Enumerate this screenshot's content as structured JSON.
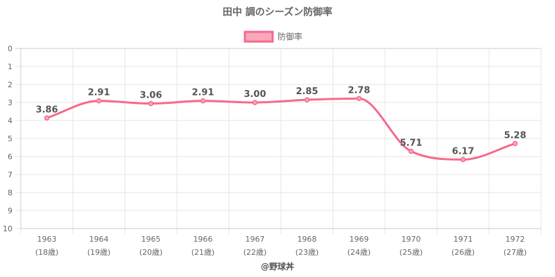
{
  "chart_data": {
    "type": "line",
    "title": "田中 調のシーズン防御率",
    "categories": [
      "1963",
      "1964",
      "1965",
      "1966",
      "1967",
      "1968",
      "1969",
      "1970",
      "1971",
      "1972"
    ],
    "category_sublabels": [
      "(18歳)",
      "(19歳)",
      "(20歳)",
      "(21歳)",
      "(22歳)",
      "(23歳)",
      "(24歳)",
      "(25歳)",
      "(26歳)",
      "(27歳)"
    ],
    "series": [
      {
        "name": "防御率",
        "values": [
          3.86,
          2.91,
          3.06,
          2.91,
          3.0,
          2.85,
          2.78,
          5.71,
          6.17,
          5.28
        ],
        "color": "#f66a8b"
      }
    ],
    "data_labels": [
      "3.86",
      "2.91",
      "3.06",
      "2.91",
      "3.00",
      "2.85",
      "2.78",
      "5.71",
      "6.17",
      "5.28"
    ],
    "y_ticks": [
      "0",
      "1",
      "2",
      "3",
      "4",
      "5",
      "6",
      "7",
      "8",
      "9",
      "10"
    ],
    "ylim": [
      10,
      0
    ],
    "y_reversed": true,
    "grid": true,
    "legend_position": "top-center",
    "legend_fill": "#f9a8bb",
    "source": "@野球丼"
  }
}
